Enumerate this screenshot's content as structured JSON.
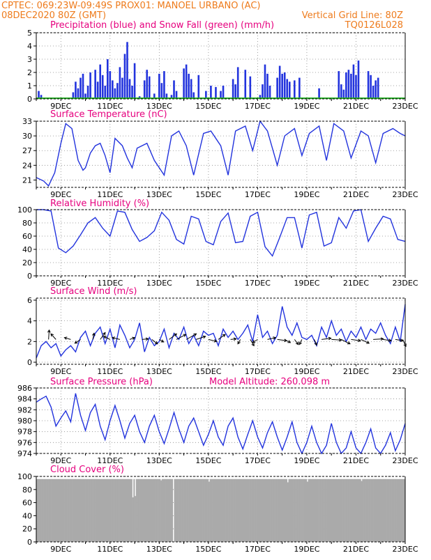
{
  "header": {
    "line1": "CPTEC:   069:23W-09:49S   PROX01: MANOEL URBANO (AC)",
    "line2_left": "08DEC2020 80Z (GMT)",
    "line2_right": "Vertical Grid Line: 80Z",
    "line3_right": "TQ0126L028"
  },
  "colors": {
    "header_text": "#ee7b1c",
    "title_text": "#e6007e",
    "series_blue": "#2233dd",
    "snow_green": "#22aa22",
    "cloud_gray": "#aaaaaa",
    "grid": "#888888",
    "axis": "#000000",
    "wind_arrow": "#000000"
  },
  "shared_x_tick_labels": [
    "9DEC",
    "11DEC",
    "13DEC",
    "15DEC",
    "17DEC",
    "19DEC",
    "21DEC",
    "23DEC"
  ],
  "chart_data": [
    {
      "type": "bar",
      "title": "Precipitation (blue) and Snow Fall (green) (mm/h)",
      "xlabel": "",
      "ylabel": "",
      "ylim": [
        0,
        5
      ],
      "yticks": [
        0,
        1,
        2,
        3,
        4,
        5
      ],
      "xrange_days": [
        8,
        23
      ],
      "series": [
        {
          "name": "Precipitation",
          "x": [
            8.1,
            8.2,
            9.5,
            9.6,
            9.7,
            9.8,
            9.9,
            10.0,
            10.1,
            10.2,
            10.4,
            10.5,
            10.6,
            10.7,
            10.8,
            10.9,
            11.0,
            11.1,
            11.2,
            11.3,
            11.4,
            11.5,
            11.6,
            11.7,
            11.8,
            11.9,
            12.0,
            12.2,
            12.4,
            12.5,
            12.6,
            12.8,
            13.0,
            13.1,
            13.2,
            13.3,
            13.5,
            13.6,
            13.7,
            14.0,
            14.1,
            14.2,
            14.3,
            14.4,
            14.6,
            14.9,
            15.1,
            15.3,
            15.5,
            15.6,
            16.0,
            16.1,
            16.2,
            16.5,
            16.7,
            17.1,
            17.2,
            17.3,
            17.4,
            17.5,
            17.8,
            17.9,
            18.0,
            18.1,
            18.2,
            18.3,
            18.5,
            18.7,
            19.5,
            20.3,
            20.4,
            20.5,
            20.6,
            20.7,
            20.8,
            20.9,
            21.0,
            21.1,
            21.5,
            21.6,
            21.7,
            21.8,
            21.9
          ],
          "values": [
            0.6,
            0.3,
            0.5,
            1.3,
            0.8,
            1.6,
            1.9,
            0.4,
            1.0,
            2.0,
            2.2,
            1.3,
            2.6,
            1.8,
            1.0,
            3.0,
            2.1,
            1.4,
            0.8,
            1.2,
            2.4,
            1.6,
            3.4,
            4.3,
            1.5,
            1.0,
            2.7,
            0.2,
            1.4,
            2.2,
            1.7,
            0.4,
            1.9,
            1.2,
            2.1,
            0.4,
            0.3,
            1.4,
            0.6,
            2.3,
            2.6,
            1.9,
            1.5,
            0.5,
            1.8,
            0.6,
            1.0,
            0.9,
            0.6,
            1.0,
            1.5,
            1.1,
            2.4,
            2.2,
            1.7,
            0.3,
            1.1,
            2.6,
            1.9,
            1.0,
            1.6,
            2.5,
            1.9,
            2.0,
            1.5,
            1.3,
            1.4,
            1.6,
            0.8,
            2.1,
            1.1,
            0.7,
            2.0,
            2.2,
            1.9,
            2.6,
            1.8,
            2.9,
            2.1,
            1.8,
            1.0,
            1.4,
            1.6
          ]
        },
        {
          "name": "Snow Fall",
          "constant": 0
        }
      ]
    },
    {
      "type": "line",
      "title": "Surface Temperature (nC)",
      "xlabel": "",
      "ylabel": "",
      "ylim": [
        19.5,
        33
      ],
      "yticks": [
        21,
        24,
        27,
        30,
        33
      ],
      "xrange_days": [
        8,
        23
      ],
      "series": [
        {
          "name": "",
          "x": [
            8.0,
            8.3,
            8.5,
            8.75,
            9.0,
            9.2,
            9.45,
            9.7,
            9.9,
            10.0,
            10.2,
            10.4,
            10.6,
            10.8,
            11.0,
            11.2,
            11.5,
            11.7,
            11.9,
            12.1,
            12.5,
            12.8,
            13.2,
            13.5,
            13.8,
            14.1,
            14.4,
            14.8,
            15.1,
            15.5,
            15.8,
            16.1,
            16.5,
            16.8,
            17.1,
            17.4,
            17.8,
            18.1,
            18.5,
            18.8,
            19.1,
            19.5,
            19.8,
            20.1,
            20.5,
            20.8,
            21.2,
            21.5,
            21.8,
            22.1,
            22.5,
            22.8,
            23.0
          ],
          "values": [
            21.5,
            20.8,
            19.8,
            22.5,
            28.5,
            32.5,
            31.5,
            25.0,
            23.0,
            23.5,
            26.5,
            28.0,
            28.5,
            26.0,
            22.5,
            29.5,
            28.0,
            25.5,
            23.5,
            27.5,
            28.5,
            25.0,
            22.0,
            30.0,
            31.0,
            28.0,
            22.0,
            30.5,
            31.0,
            28.0,
            22.0,
            31.0,
            32.0,
            27.0,
            33.0,
            31.0,
            24.0,
            30.0,
            31.5,
            26.0,
            30.5,
            32.0,
            25.0,
            32.5,
            31.0,
            25.5,
            31.0,
            30.0,
            24.5,
            30.5,
            31.5,
            30.5,
            30.0
          ]
        }
      ]
    },
    {
      "type": "line",
      "title": "Relative Humidity (%)",
      "xlabel": "",
      "ylabel": "",
      "ylim": [
        0,
        100
      ],
      "yticks": [
        0,
        20,
        40,
        60,
        80,
        100
      ],
      "xrange_days": [
        8,
        23
      ],
      "series": [
        {
          "name": "",
          "x": [
            8.0,
            8.3,
            8.6,
            8.9,
            9.2,
            9.5,
            9.8,
            10.1,
            10.4,
            10.7,
            11.0,
            11.3,
            11.6,
            11.9,
            12.2,
            12.5,
            12.8,
            13.1,
            13.4,
            13.7,
            14.0,
            14.3,
            14.6,
            14.9,
            15.2,
            15.5,
            15.8,
            16.1,
            16.4,
            16.7,
            17.0,
            17.3,
            17.6,
            17.9,
            18.2,
            18.5,
            18.8,
            19.1,
            19.4,
            19.7,
            20.0,
            20.3,
            20.6,
            20.9,
            21.2,
            21.5,
            21.8,
            22.1,
            22.4,
            22.7,
            23.0
          ],
          "values": [
            100,
            100,
            98,
            42,
            35,
            45,
            62,
            80,
            88,
            72,
            60,
            98,
            96,
            70,
            52,
            58,
            68,
            96,
            84,
            55,
            48,
            90,
            86,
            52,
            47,
            82,
            95,
            50,
            52,
            90,
            96,
            44,
            30,
            58,
            88,
            88,
            42,
            92,
            96,
            45,
            50,
            88,
            72,
            98,
            100,
            52,
            72,
            90,
            86,
            55,
            52
          ]
        }
      ]
    },
    {
      "type": "line",
      "title": "Surface Wind (m/s)",
      "xlabel": "",
      "ylabel": "",
      "ylim": [
        -0.2,
        6.2
      ],
      "yticks": [
        0,
        2,
        4,
        6
      ],
      "xrange_days": [
        8,
        23
      ],
      "series": [
        {
          "name": "",
          "x": [
            8.0,
            8.2,
            8.4,
            8.6,
            8.8,
            9.0,
            9.2,
            9.4,
            9.6,
            9.8,
            10.0,
            10.2,
            10.4,
            10.6,
            10.8,
            11.0,
            11.2,
            11.4,
            11.6,
            11.8,
            12.0,
            12.2,
            12.4,
            12.6,
            12.8,
            13.0,
            13.2,
            13.4,
            13.6,
            13.8,
            14.0,
            14.2,
            14.4,
            14.6,
            14.8,
            15.0,
            15.2,
            15.4,
            15.6,
            15.8,
            16.0,
            16.2,
            16.4,
            16.6,
            16.8,
            17.0,
            17.2,
            17.4,
            17.6,
            17.8,
            18.0,
            18.2,
            18.4,
            18.6,
            18.8,
            19.0,
            19.2,
            19.4,
            19.6,
            19.8,
            20.0,
            20.2,
            20.4,
            20.6,
            20.8,
            21.0,
            21.2,
            21.4,
            21.6,
            21.8,
            22.0,
            22.2,
            22.4,
            22.6,
            22.8,
            23.0
          ],
          "values": [
            0.4,
            1.6,
            2.0,
            1.4,
            1.8,
            0.6,
            1.2,
            1.6,
            1.0,
            2.4,
            3.0,
            1.6,
            2.8,
            3.4,
            1.8,
            3.2,
            1.4,
            3.6,
            2.6,
            1.4,
            2.2,
            3.8,
            1.0,
            2.4,
            1.6,
            2.0,
            3.2,
            1.4,
            2.8,
            2.2,
            3.4,
            1.8,
            2.6,
            1.6,
            3.0,
            2.6,
            2.8,
            1.6,
            3.2,
            2.4,
            3.0,
            2.2,
            2.8,
            3.6,
            2.0,
            4.6,
            2.4,
            3.0,
            1.8,
            2.6,
            5.4,
            3.4,
            2.6,
            3.8,
            2.4,
            2.2,
            2.6,
            1.6,
            3.4,
            2.4,
            4.0,
            2.6,
            3.2,
            2.0,
            3.0,
            2.4,
            3.4,
            2.2,
            3.2,
            2.8,
            3.8,
            2.6,
            1.8,
            3.4,
            2.0,
            5.6
          ]
        },
        {
          "name": "",
          "type": "vector",
          "x": [
            8.5,
            8.8,
            9.4,
            9.8,
            10.3,
            10.6,
            11.0,
            11.4,
            11.8,
            12.3,
            12.7,
            13.0,
            13.4,
            13.7,
            14.1,
            14.5,
            15.0,
            15.4,
            15.9,
            16.3,
            16.7,
            17.0,
            17.4,
            17.8,
            18.1,
            18.5,
            18.8,
            19.3,
            19.6,
            20.0,
            20.4,
            20.8,
            21.2,
            21.7,
            22.1,
            22.6,
            22.9
          ],
          "u": [
            0.1,
            -0.8,
            -1.0,
            -0.9,
            0.2,
            0.8,
            -1.0,
            -1.2,
            0.8,
            1.0,
            0.9,
            0.7,
            1.2,
            1.5,
            1.6,
            1.5,
            1.3,
            1.1,
            0.9,
            -0.4,
            0.6,
            -0.8,
            1.3,
            1.5,
            0.9,
            0.6,
            -0.4,
            0.4,
            1.5,
            1.6,
            1.4,
            1.5,
            1.3,
            1.6,
            1.3,
            1.2,
            0.5
          ],
          "v": [
            1.5,
            0.9,
            0.3,
            -0.6,
            1.0,
            1.1,
            0.5,
            0.3,
            0.3,
            0.1,
            -0.7,
            -0.4,
            0.9,
            0.8,
            0.9,
            0.5,
            -0.3,
            0.8,
            0.1,
            -0.7,
            -1.0,
            -0.5,
            0.3,
            -0.2,
            -0.5,
            -0.8,
            -0.8,
            -0.9,
            0.2,
            -0.1,
            -0.7,
            -0.2,
            -0.6,
            0.1,
            -0.2,
            -0.2,
            -1.1
          ]
        }
      ]
    },
    {
      "type": "line",
      "title": "Surface Pressure (hPa)",
      "annotation": "Model Altitude: 260.098 m",
      "xlabel": "",
      "ylabel": "",
      "ylim": [
        974,
        986
      ],
      "yticks": [
        974,
        976,
        978,
        980,
        982,
        984,
        986
      ],
      "xrange_days": [
        8,
        23
      ],
      "series": [
        {
          "name": "",
          "x": [
            8.0,
            8.2,
            8.4,
            8.6,
            8.8,
            9.0,
            9.2,
            9.4,
            9.6,
            9.8,
            10.0,
            10.2,
            10.4,
            10.6,
            10.8,
            11.0,
            11.2,
            11.4,
            11.6,
            11.8,
            12.0,
            12.2,
            12.4,
            12.6,
            12.8,
            13.0,
            13.2,
            13.4,
            13.6,
            13.8,
            14.0,
            14.2,
            14.4,
            14.6,
            14.8,
            15.0,
            15.2,
            15.4,
            15.6,
            15.8,
            16.0,
            16.2,
            16.4,
            16.6,
            16.8,
            17.0,
            17.2,
            17.4,
            17.6,
            17.8,
            18.0,
            18.2,
            18.4,
            18.6,
            18.8,
            19.0,
            19.2,
            19.4,
            19.6,
            19.8,
            20.0,
            20.2,
            20.4,
            20.6,
            20.8,
            21.0,
            21.2,
            21.4,
            21.6,
            21.8,
            22.0,
            22.2,
            22.4,
            22.6,
            22.8,
            23.0
          ],
          "values": [
            983.4,
            984.0,
            984.5,
            982.5,
            979.0,
            980.5,
            981.8,
            979.8,
            985.0,
            981.0,
            978.2,
            981.5,
            983.0,
            979.0,
            976.5,
            980.0,
            982.8,
            980.0,
            976.8,
            979.5,
            981.0,
            978.0,
            976.0,
            979.0,
            981.0,
            978.0,
            975.8,
            978.5,
            981.5,
            978.5,
            976.0,
            979.0,
            980.5,
            978.0,
            975.5,
            977.5,
            980.0,
            977.0,
            975.5,
            979.0,
            980.5,
            977.0,
            974.8,
            977.5,
            980.0,
            977.0,
            975.0,
            977.8,
            979.8,
            977.0,
            974.6,
            977.0,
            979.8,
            976.0,
            973.8,
            976.0,
            979.0,
            976.0,
            973.5,
            975.5,
            979.5,
            976.0,
            973.5,
            975.0,
            978.0,
            975.0,
            973.8,
            976.0,
            978.5,
            975.0,
            973.5,
            975.5,
            977.8,
            974.5,
            976.5,
            979.5
          ]
        }
      ]
    },
    {
      "type": "bar",
      "title": "Cloud Cover (%)",
      "xlabel": "",
      "ylabel": "",
      "ylim": [
        0,
        100
      ],
      "yticks": [
        0,
        20,
        40,
        60,
        80,
        100
      ],
      "xrange_days": [
        8,
        23
      ],
      "series": [
        {
          "name": "",
          "pattern": "near-overcast",
          "base": 96,
          "low_points": [
            {
              "x": 11.9,
              "value": 68
            },
            {
              "x": 12.0,
              "value": 70
            },
            {
              "x": 13.05,
              "value": 94
            },
            {
              "x": 13.55,
              "value": 0
            },
            {
              "x": 15.0,
              "value": 92
            },
            {
              "x": 18.2,
              "value": 91
            },
            {
              "x": 19.0,
              "value": 92
            },
            {
              "x": 21.2,
              "value": 93
            }
          ]
        }
      ]
    }
  ]
}
